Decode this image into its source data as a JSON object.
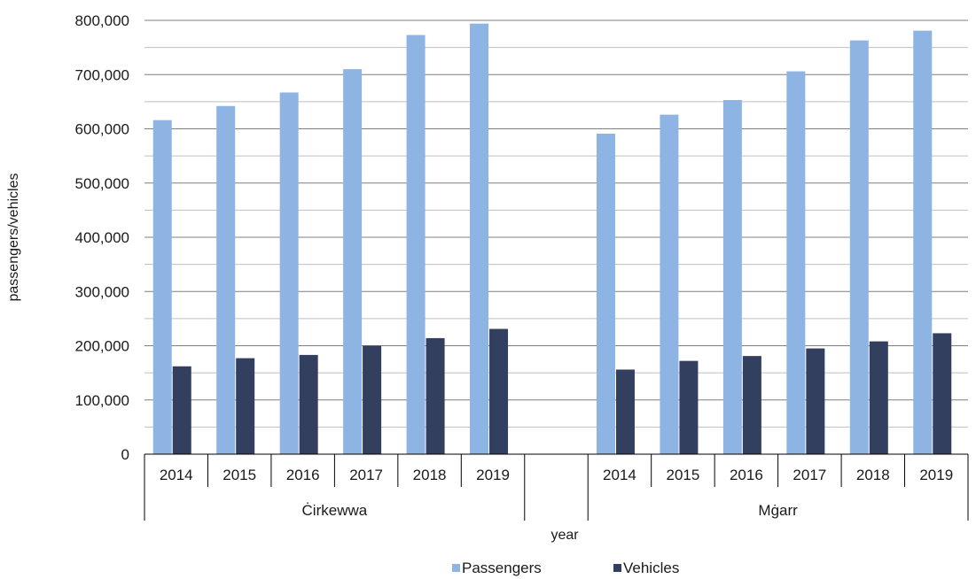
{
  "chart_data": {
    "type": "bar",
    "groups": [
      {
        "label": "Ċirkewwa",
        "categories": [
          "2014",
          "2015",
          "2016",
          "2017",
          "2018",
          "2019"
        ]
      },
      {
        "label": "",
        "categories": [
          ""
        ]
      },
      {
        "label": "Mġarr",
        "categories": [
          "2014",
          "2015",
          "2016",
          "2017",
          "2018",
          "2019"
        ]
      }
    ],
    "series": [
      {
        "name": "Passengers",
        "color": "#8db4e2",
        "values": [
          616000,
          642000,
          667000,
          710000,
          773000,
          794000,
          null,
          591000,
          626000,
          653000,
          706000,
          763000,
          781000
        ]
      },
      {
        "name": "Vehicles",
        "color": "#333f5f",
        "values": [
          162000,
          177000,
          183000,
          200000,
          214000,
          231000,
          null,
          156000,
          172000,
          181000,
          195000,
          208000,
          223000
        ]
      }
    ],
    "ylim": [
      0,
      800000
    ],
    "y_ticks": [
      "0",
      "100,000",
      "200,000",
      "300,000",
      "400,000",
      "500,000",
      "600,000",
      "700,000",
      "800,000"
    ],
    "y_tick_values": [
      0,
      100000,
      200000,
      300000,
      400000,
      500000,
      600000,
      700000,
      800000
    ],
    "ylabel": "passengers/vehicles",
    "xlabel": "year",
    "grid": true,
    "legend": "bottom-center"
  }
}
